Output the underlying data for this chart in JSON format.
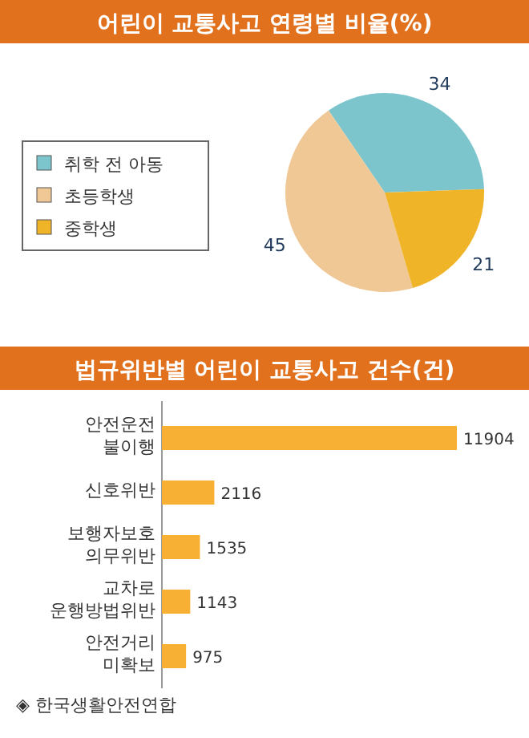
{
  "chart_data": [
    {
      "type": "pie",
      "title": "어린이 교통사고 연령별 비율(%)",
      "categories": [
        "취학 전 아동",
        "초등학생",
        "중학생"
      ],
      "values": [
        34,
        45,
        21
      ],
      "colors": [
        "#7cc5cd",
        "#f0c896",
        "#f0b428"
      ],
      "data_labels": true,
      "legend": "left"
    },
    {
      "type": "bar",
      "orientation": "horizontal",
      "title": "법규위반별 어린이 교통사고 건수(건)",
      "categories": [
        "안전운전 불이행",
        "신호위반",
        "보행자보호 의무위반",
        "교차로 운행방법위반",
        "안전거리 미확보"
      ],
      "values": [
        11904,
        2116,
        1535,
        1143,
        975
      ],
      "color": "#f8b034",
      "data_labels": true,
      "annotations": [
        "◈ 한국생활안전연합"
      ]
    }
  ]
}
